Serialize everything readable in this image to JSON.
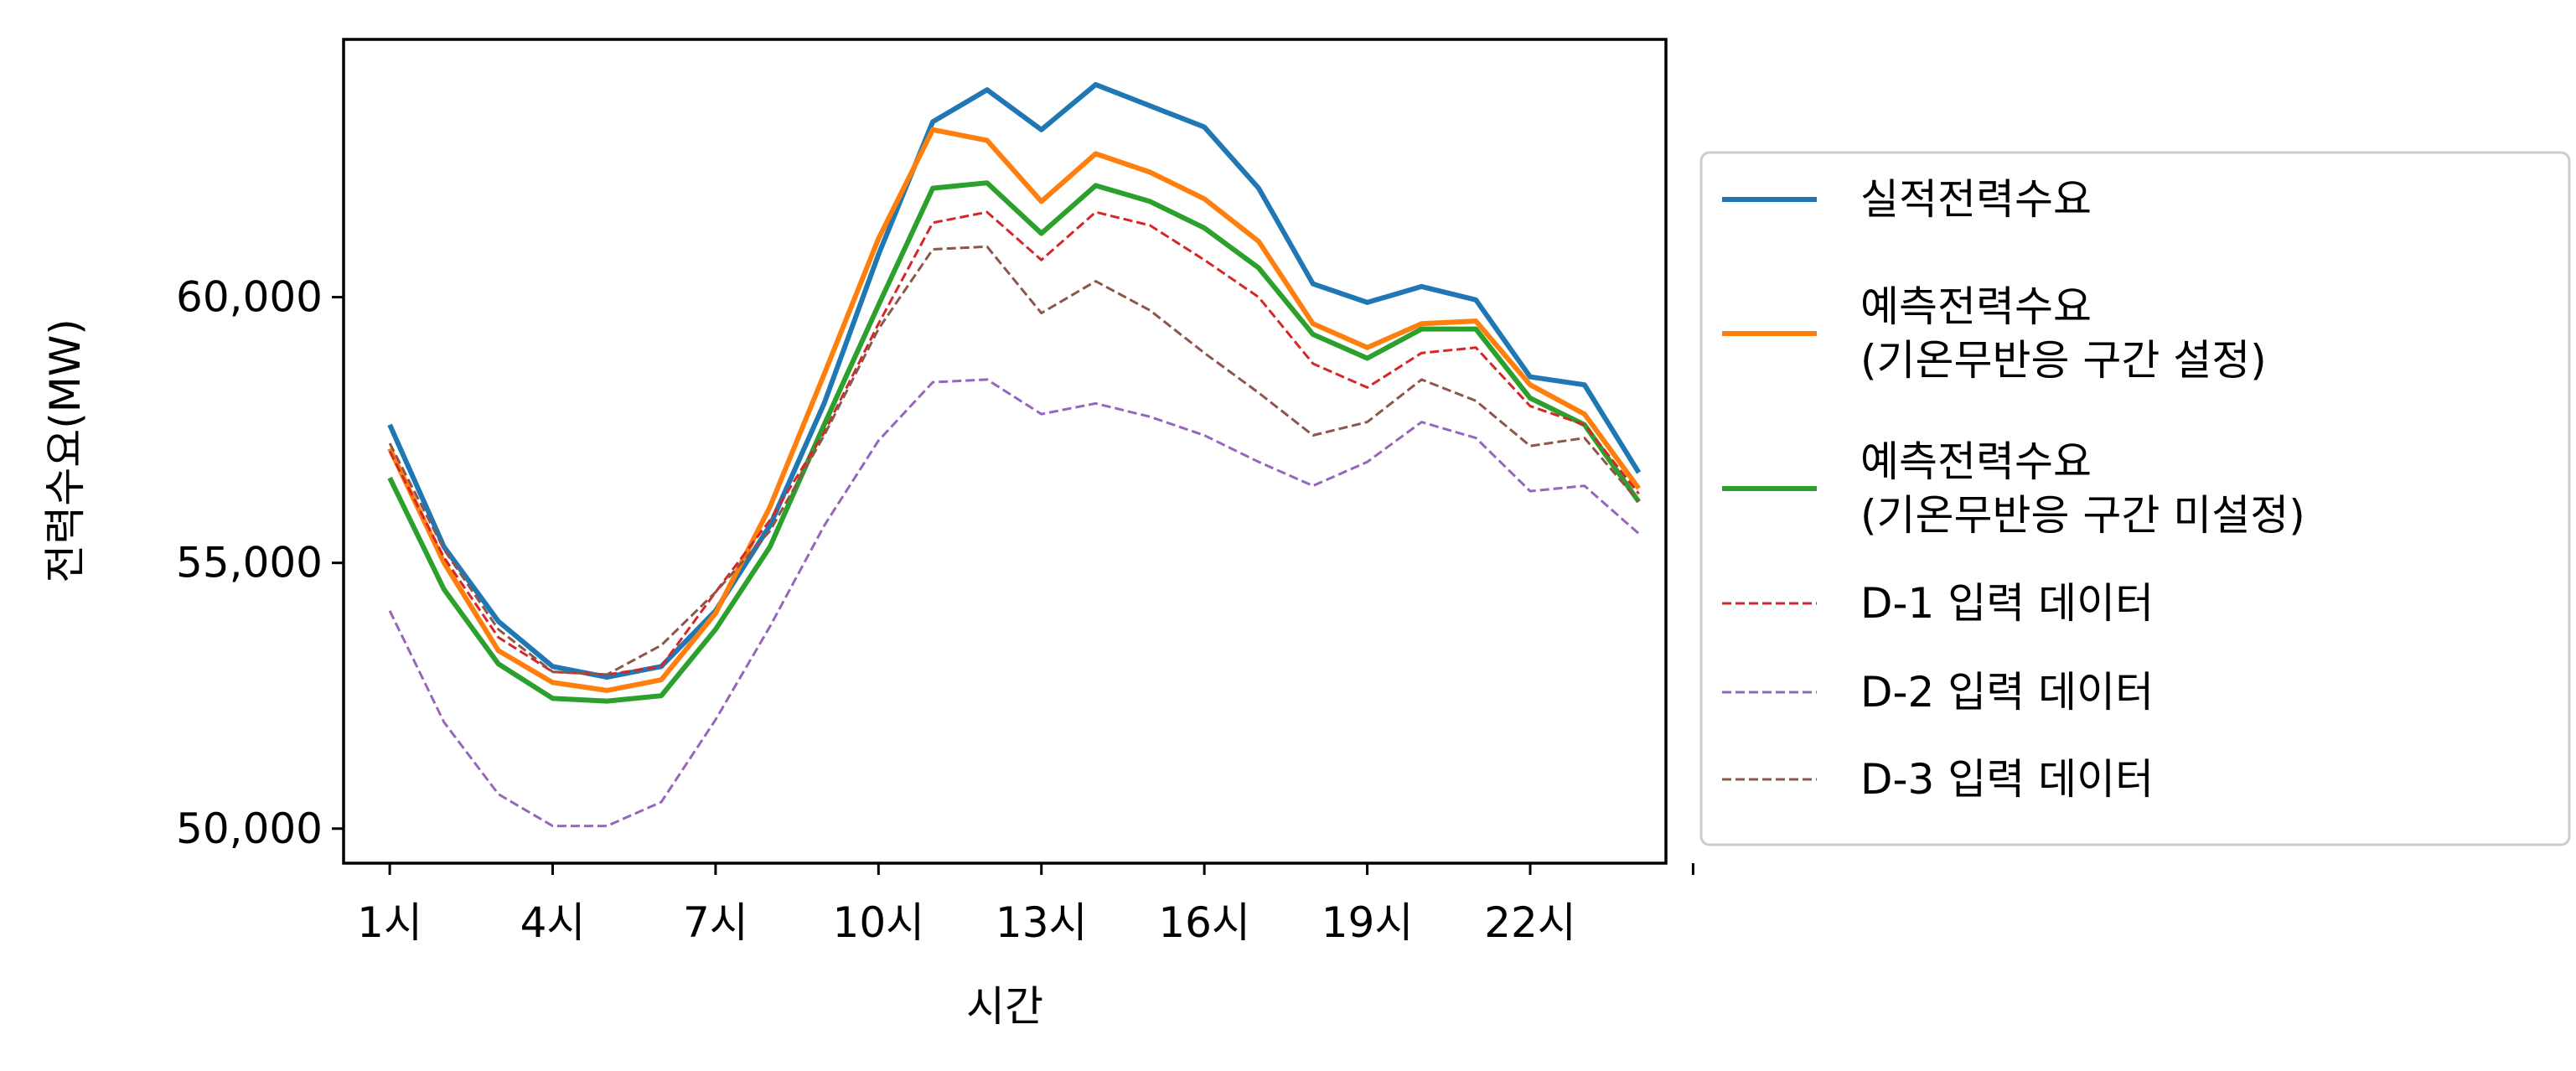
{
  "chart_data": {
    "type": "line",
    "xlabel": "시간",
    "ylabel": "전력수요(MW)",
    "ylim": [
      49350,
      64850
    ],
    "xlim": [
      0.15,
      24.5
    ],
    "x": [
      1,
      2,
      3,
      4,
      5,
      6,
      7,
      8,
      9,
      10,
      11,
      12,
      13,
      14,
      15,
      16,
      17,
      18,
      19,
      20,
      21,
      22,
      23,
      24
    ],
    "x_ticks": [
      1,
      4,
      7,
      10,
      13,
      16,
      19,
      22,
      25
    ],
    "x_tick_labels": [
      "1시",
      "4시",
      "7시",
      "10시",
      "13시",
      "16시",
      "19시",
      "22시",
      ""
    ],
    "y_ticks": [
      50000,
      55000,
      60000
    ],
    "y_tick_labels": [
      "50,000",
      "55,000",
      "60,000"
    ],
    "grid": false,
    "legend_position": "right, outside plot",
    "series": [
      {
        "name": "실적전력수요",
        "color": "#1f77b4",
        "style": "solid",
        "values": [
          57600,
          55300,
          53900,
          53050,
          52850,
          53050,
          54100,
          55700,
          58000,
          60800,
          63300,
          63900,
          63150,
          64000,
          63600,
          63200,
          62050,
          60250,
          59900,
          60200,
          59950,
          58500,
          58350,
          56700
        ]
      },
      {
        "name": "예측전력수요\n(기온무반응 구간 설정)",
        "color": "#ff7f0e",
        "style": "solid",
        "values": [
          57150,
          55000,
          53350,
          52750,
          52600,
          52800,
          54050,
          56050,
          58550,
          61100,
          63150,
          62950,
          61800,
          62700,
          62350,
          61850,
          61050,
          59500,
          59050,
          59500,
          59550,
          58350,
          57800,
          56400
        ]
      },
      {
        "name": "예측전력수요\n(기온무반응 구간 미설정)",
        "color": "#2ca02c",
        "style": "solid",
        "values": [
          56600,
          54500,
          53100,
          52450,
          52400,
          52500,
          53750,
          55300,
          57600,
          59850,
          62050,
          62150,
          61200,
          62100,
          61800,
          61300,
          60550,
          59300,
          58850,
          59400,
          59400,
          58100,
          57600,
          56150
        ]
      },
      {
        "name": "D-1 입력 데이터",
        "color": "#d62728",
        "style": "dashed",
        "values": [
          57100,
          55100,
          53600,
          52950,
          52900,
          53050,
          54450,
          55800,
          57450,
          59500,
          61400,
          61600,
          60700,
          61600,
          61350,
          60700,
          60000,
          58750,
          58300,
          58950,
          59050,
          57950,
          57600,
          56300
        ]
      },
      {
        "name": "D-2 입력 데이터",
        "color": "#9467bd",
        "style": "dashed",
        "values": [
          54100,
          52000,
          50650,
          50050,
          50050,
          50500,
          52050,
          53800,
          55700,
          57300,
          58400,
          58450,
          57800,
          58000,
          57750,
          57400,
          56900,
          56450,
          56900,
          57650,
          57350,
          56350,
          56450,
          55550
        ]
      },
      {
        "name": "D-3 입력 데이터",
        "color": "#8c564b",
        "style": "dashed",
        "values": [
          57250,
          55250,
          53750,
          52950,
          52900,
          53450,
          54450,
          55600,
          57400,
          59400,
          60900,
          60950,
          59700,
          60300,
          59750,
          58950,
          58200,
          57400,
          57650,
          58450,
          58050,
          57200,
          57350,
          56150
        ]
      }
    ]
  }
}
